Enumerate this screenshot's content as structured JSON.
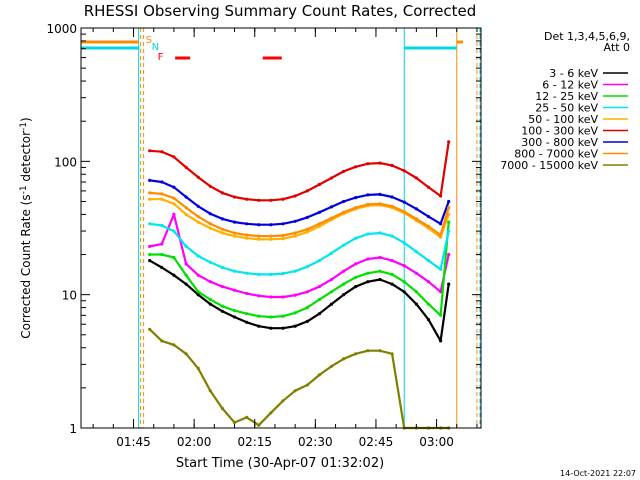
{
  "chart_data": {
    "type": "line",
    "title": "RHESSI Observing Summary Count Rates, Corrected",
    "xlabel": "Start Time (30-Apr-07 01:32:02)",
    "ylabel": "Corrected Count Rate (s⁻¹ detector⁻¹)",
    "y_scale": "log",
    "ylim": [
      1,
      1000
    ],
    "xlim": [
      "01:32",
      "03:11"
    ],
    "x_ticks": [
      "01:45",
      "02:00",
      "02:15",
      "02:30",
      "02:45",
      "03:00"
    ],
    "y_ticks": [
      "1",
      "10",
      "100",
      "1000"
    ],
    "grid": false,
    "legend_header": [
      "Det 1,3,4,5,6,9,",
      "Att 0"
    ],
    "legend_position": "right",
    "footer_stamp": "14-Oct-2021 22:07",
    "flags": [
      {
        "label": "S",
        "color": "#ff8c00"
      },
      {
        "label": "N",
        "color": "#00d8e8"
      },
      {
        "label": "F",
        "color": "#ff0000"
      }
    ],
    "series": [
      {
        "name": "3 - 6 keV",
        "color": "#000000",
        "x": [
          "01:49",
          "01:52",
          "01:55",
          "01:58",
          "02:01",
          "02:04",
          "02:07",
          "02:10",
          "02:13",
          "02:16",
          "02:19",
          "02:22",
          "02:25",
          "02:28",
          "02:31",
          "02:34",
          "02:37",
          "02:40",
          "02:43",
          "02:46",
          "02:49",
          "02:52",
          "02:55",
          "02:58",
          "03:01",
          "03:03"
        ],
        "values": [
          18,
          16,
          14,
          12,
          10,
          8.5,
          7.5,
          6.8,
          6.2,
          5.8,
          5.6,
          5.6,
          5.8,
          6.3,
          7.2,
          8.5,
          10,
          11.5,
          12.5,
          13,
          12,
          10.5,
          8.5,
          6.5,
          4.5,
          12
        ]
      },
      {
        "name": "6 - 12 keV",
        "color": "#ff00ff",
        "x": [
          "01:49",
          "01:52",
          "01:55",
          "01:58",
          "02:01",
          "02:04",
          "02:07",
          "02:10",
          "02:13",
          "02:16",
          "02:19",
          "02:22",
          "02:25",
          "02:28",
          "02:31",
          "02:34",
          "02:37",
          "02:40",
          "02:43",
          "02:46",
          "02:49",
          "02:52",
          "02:55",
          "02:58",
          "03:01",
          "03:03"
        ],
        "values": [
          23,
          24,
          40,
          17,
          14,
          12.5,
          11.5,
          10.8,
          10.2,
          9.8,
          9.6,
          9.6,
          9.9,
          10.5,
          11.5,
          13,
          15,
          17,
          18.5,
          19,
          18,
          16.5,
          14.5,
          12.5,
          10.5,
          20
        ]
      },
      {
        "name": "12 - 25 keV",
        "color": "#00e000",
        "x": [
          "01:49",
          "01:52",
          "01:55",
          "01:58",
          "02:01",
          "02:04",
          "02:07",
          "02:10",
          "02:13",
          "02:16",
          "02:19",
          "02:22",
          "02:25",
          "02:28",
          "02:31",
          "02:34",
          "02:37",
          "02:40",
          "02:43",
          "02:46",
          "02:49",
          "02:52",
          "02:55",
          "02:58",
          "03:01",
          "03:03"
        ],
        "values": [
          20,
          20,
          19,
          14,
          10.5,
          9.2,
          8.2,
          7.6,
          7.2,
          6.9,
          6.8,
          6.9,
          7.3,
          8,
          9.2,
          10.5,
          12,
          13.5,
          14.5,
          15,
          14.2,
          12.5,
          10.5,
          8.5,
          7,
          35
        ]
      },
      {
        "name": "25 - 50 keV",
        "color": "#00e5ee",
        "x": [
          "01:49",
          "01:52",
          "01:55",
          "01:58",
          "02:01",
          "02:04",
          "02:07",
          "02:10",
          "02:13",
          "02:16",
          "02:19",
          "02:22",
          "02:25",
          "02:28",
          "02:31",
          "02:34",
          "02:37",
          "02:40",
          "02:43",
          "02:46",
          "02:49",
          "02:52",
          "02:55",
          "02:58",
          "03:01",
          "03:03"
        ],
        "values": [
          34,
          33,
          30,
          23,
          19.5,
          17.5,
          16,
          15,
          14.5,
          14.2,
          14.2,
          14.4,
          15,
          16.2,
          18,
          20.5,
          23.5,
          26.5,
          28.5,
          29,
          27.5,
          24.5,
          21,
          18,
          15.5,
          30
        ]
      },
      {
        "name": "50 - 100 keV",
        "color": "#ffb000",
        "x": [
          "01:49",
          "01:52",
          "01:55",
          "01:58",
          "02:01",
          "02:04",
          "02:07",
          "02:10",
          "02:13",
          "02:16",
          "02:19",
          "02:22",
          "02:25",
          "02:28",
          "02:31",
          "02:34",
          "02:37",
          "02:40",
          "02:43",
          "02:46",
          "02:49",
          "02:52",
          "02:55",
          "02:58",
          "03:01",
          "03:03"
        ],
        "values": [
          52,
          52,
          48,
          40,
          35,
          31.5,
          29,
          27.5,
          26.5,
          26,
          26,
          26.3,
          27.5,
          29.5,
          32.5,
          36.5,
          40.5,
          44,
          46.5,
          47,
          45,
          41,
          36,
          31.5,
          27,
          40
        ]
      },
      {
        "name": "100 - 300 keV",
        "color": "#e00000",
        "x": [
          "01:49",
          "01:52",
          "01:55",
          "01:58",
          "02:01",
          "02:04",
          "02:07",
          "02:10",
          "02:13",
          "02:16",
          "02:19",
          "02:22",
          "02:25",
          "02:28",
          "02:31",
          "02:34",
          "02:37",
          "02:40",
          "02:43",
          "02:46",
          "02:49",
          "02:52",
          "02:55",
          "02:58",
          "03:01",
          "03:03"
        ],
        "values": [
          120,
          118,
          108,
          90,
          76,
          65,
          58,
          54,
          52,
          51,
          51,
          52,
          55,
          60,
          67,
          75,
          84,
          91,
          96,
          97,
          93,
          85,
          75,
          64,
          55,
          140
        ]
      },
      {
        "name": "300 - 800 keV",
        "color": "#0000dd",
        "x": [
          "01:49",
          "01:52",
          "01:55",
          "01:58",
          "02:01",
          "02:04",
          "02:07",
          "02:10",
          "02:13",
          "02:16",
          "02:19",
          "02:22",
          "02:25",
          "02:28",
          "02:31",
          "02:34",
          "02:37",
          "02:40",
          "02:43",
          "02:46",
          "02:49",
          "02:52",
          "02:55",
          "02:58",
          "03:01",
          "03:03"
        ],
        "values": [
          72,
          70,
          64,
          54,
          46,
          40.5,
          37,
          35,
          34,
          33.5,
          33.5,
          34,
          35.5,
          38,
          41.5,
          45.5,
          50,
          53.5,
          56,
          56.5,
          54,
          49.5,
          44,
          38.5,
          34,
          50
        ]
      },
      {
        "name": "800 - 7000 keV",
        "color": "#ff8c00",
        "x": [
          "01:49",
          "01:52",
          "01:55",
          "01:58",
          "02:01",
          "02:04",
          "02:07",
          "02:10",
          "02:13",
          "02:16",
          "02:19",
          "02:22",
          "02:25",
          "02:28",
          "02:31",
          "02:34",
          "02:37",
          "02:40",
          "02:43",
          "02:46",
          "02:49",
          "02:52",
          "02:55",
          "02:58",
          "03:01",
          "03:03"
        ],
        "values": [
          58,
          57,
          53,
          45,
          38.5,
          34,
          31,
          29,
          28,
          27.5,
          27.5,
          27.8,
          29,
          31,
          34,
          37.5,
          41.5,
          45,
          47.5,
          48,
          46,
          42,
          37,
          32.5,
          28,
          45
        ]
      },
      {
        "name": "7000 - 15000 keV",
        "color": "#808000",
        "x": [
          "01:49",
          "01:52",
          "01:55",
          "01:58",
          "02:01",
          "02:04",
          "02:07",
          "02:10",
          "02:13",
          "02:16",
          "02:19",
          "02:22",
          "02:25",
          "02:28",
          "02:31",
          "02:34",
          "02:37",
          "02:40",
          "02:43",
          "02:46",
          "02:49",
          "02:52",
          "02:55",
          "02:58",
          "03:01",
          "03:03"
        ],
        "values": [
          5.5,
          4.5,
          4.2,
          3.6,
          2.8,
          1.9,
          1.4,
          1.1,
          1.2,
          1.05,
          1.3,
          1.6,
          1.9,
          2.1,
          2.5,
          2.9,
          3.3,
          3.6,
          3.8,
          3.8,
          3.6,
          1.0,
          1.0,
          1.0,
          1.0,
          1.0
        ]
      }
    ]
  }
}
